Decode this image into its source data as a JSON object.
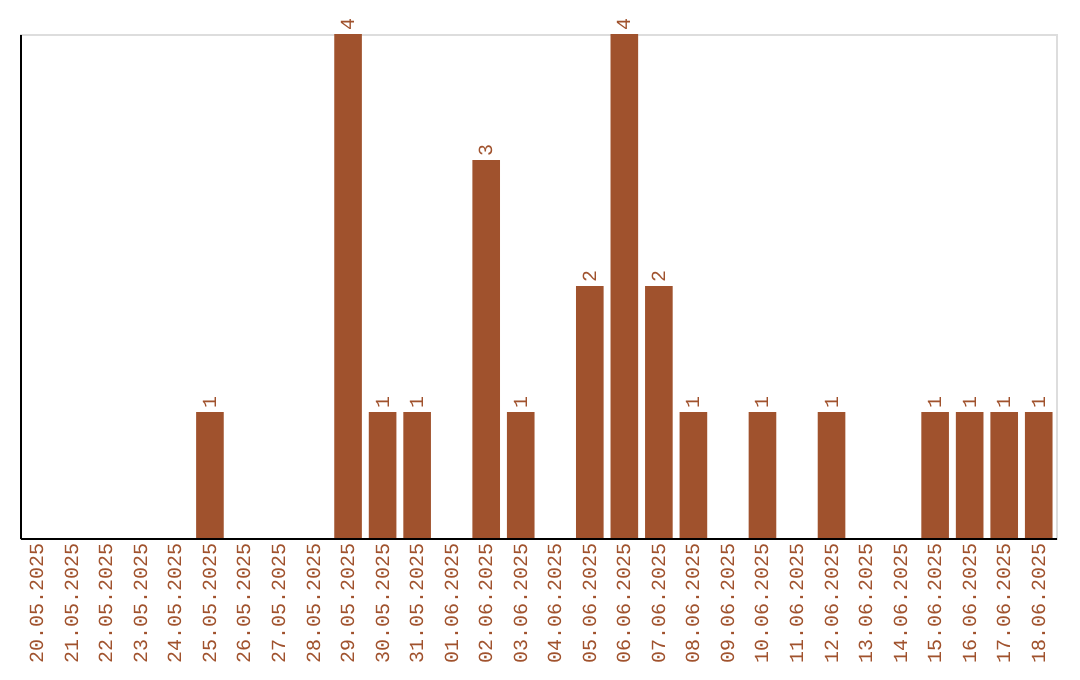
{
  "chart_data": {
    "type": "bar",
    "categories": [
      "20.05.2025",
      "21.05.2025",
      "22.05.2025",
      "23.05.2025",
      "24.05.2025",
      "25.05.2025",
      "26.05.2025",
      "27.05.2025",
      "28.05.2025",
      "29.05.2025",
      "30.05.2025",
      "31.05.2025",
      "01.06.2025",
      "02.06.2025",
      "03.06.2025",
      "04.06.2025",
      "05.06.2025",
      "06.06.2025",
      "07.06.2025",
      "08.06.2025",
      "09.06.2025",
      "10.06.2025",
      "11.06.2025",
      "12.06.2025",
      "13.06.2025",
      "14.06.2025",
      "15.06.2025",
      "16.06.2025",
      "17.06.2025",
      "18.06.2025"
    ],
    "values": [
      0,
      0,
      0,
      0,
      0,
      1,
      0,
      0,
      0,
      4,
      1,
      1,
      0,
      3,
      1,
      0,
      2,
      4,
      2,
      1,
      0,
      1,
      0,
      1,
      0,
      0,
      1,
      1,
      1,
      1
    ],
    "value_labels": [
      null,
      null,
      null,
      null,
      null,
      "1",
      null,
      null,
      null,
      "4",
      "1",
      "1",
      null,
      "3",
      "1",
      null,
      "2",
      "4",
      "2",
      "1",
      null,
      "1",
      null,
      "1",
      null,
      null,
      "1",
      "1",
      "1",
      "1"
    ],
    "color": "#a0522d",
    "ylim": [
      0,
      4
    ],
    "grid": false,
    "tick_labels": "x"
  }
}
